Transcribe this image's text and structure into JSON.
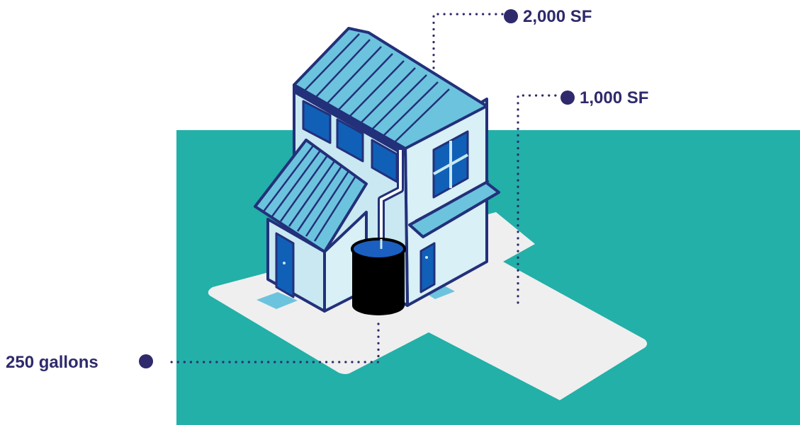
{
  "callouts": {
    "roof_area": "2,000 SF",
    "paved_area": "1,000 SF",
    "barrel_capacity": "250 gallons"
  },
  "colors": {
    "lawn": "#22b0a8",
    "pavement": "#efefef",
    "wall_light": "#c9e8f1",
    "roof": "#6cc3dd",
    "outline": "#23307a",
    "window": "#1060b8",
    "barrel": "#000000",
    "barrel_water": "#1b5fc0",
    "label": "#2e2a6b"
  },
  "icons": {
    "house": "house-icon",
    "rain_barrel": "rain-barrel-icon",
    "downspout": "downspout-icon"
  }
}
